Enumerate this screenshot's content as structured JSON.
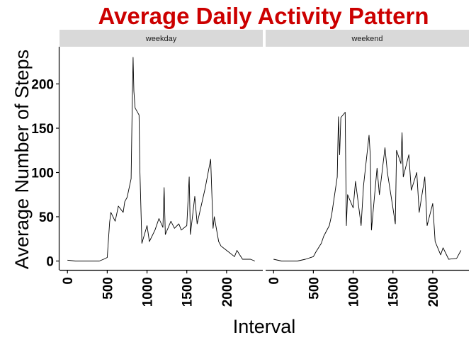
{
  "figure": {
    "title": "Average Daily Activity Pattern",
    "title_color": "#cc0000",
    "strip_color": "#d9d9d9",
    "line_color": "#000000"
  },
  "chart_data": {
    "type": "line",
    "title": "Average Daily Activity Pattern",
    "xlabel": "Interval",
    "ylabel": "Average Number of Steps",
    "xlim": [
      -100,
      2455
    ],
    "ylim": [
      -10,
      242
    ],
    "x_ticks": [
      0,
      500,
      1000,
      1500,
      2000
    ],
    "y_ticks": [
      0,
      50,
      100,
      150,
      200
    ],
    "grid": false,
    "facets": [
      {
        "name": "weekday",
        "x": [
          0,
          100,
          200,
          300,
          400,
          455,
          500,
          530,
          545,
          600,
          640,
          700,
          720,
          750,
          800,
          815,
          825,
          835,
          850,
          900,
          910,
          935,
          1000,
          1030,
          1100,
          1150,
          1200,
          1215,
          1230,
          1300,
          1345,
          1400,
          1430,
          1500,
          1530,
          1545,
          1600,
          1630,
          1700,
          1730,
          1800,
          1830,
          1845,
          1900,
          1930,
          2000,
          2100,
          2130,
          2200,
          2300,
          2355
        ],
        "y": [
          1,
          0,
          0,
          0,
          0,
          2,
          4,
          44,
          55,
          45,
          62,
          55,
          67,
          72,
          93,
          184,
          230,
          192,
          173,
          165,
          102,
          20,
          40,
          22,
          35,
          48,
          38,
          83,
          30,
          45,
          37,
          42,
          35,
          40,
          95,
          30,
          73,
          42,
          70,
          82,
          115,
          37,
          50,
          22,
          17,
          12,
          5,
          12,
          2,
          2,
          0
        ]
      },
      {
        "name": "weekend",
        "x": [
          0,
          100,
          200,
          300,
          400,
          500,
          530,
          600,
          630,
          700,
          730,
          800,
          815,
          830,
          845,
          900,
          915,
          930,
          1000,
          1030,
          1100,
          1130,
          1200,
          1215,
          1230,
          1300,
          1330,
          1400,
          1430,
          1500,
          1530,
          1545,
          1600,
          1615,
          1630,
          1700,
          1730,
          1800,
          1830,
          1900,
          1930,
          2000,
          2030,
          2100,
          2130,
          2200,
          2300,
          2355
        ],
        "y": [
          2,
          0,
          0,
          0,
          2,
          5,
          10,
          20,
          28,
          40,
          52,
          95,
          163,
          120,
          162,
          168,
          40,
          75,
          60,
          90,
          40,
          85,
          142,
          120,
          35,
          105,
          75,
          128,
          100,
          60,
          42,
          125,
          110,
          145,
          95,
          120,
          80,
          100,
          55,
          95,
          40,
          65,
          22,
          7,
          15,
          2,
          3,
          12
        ]
      }
    ]
  }
}
